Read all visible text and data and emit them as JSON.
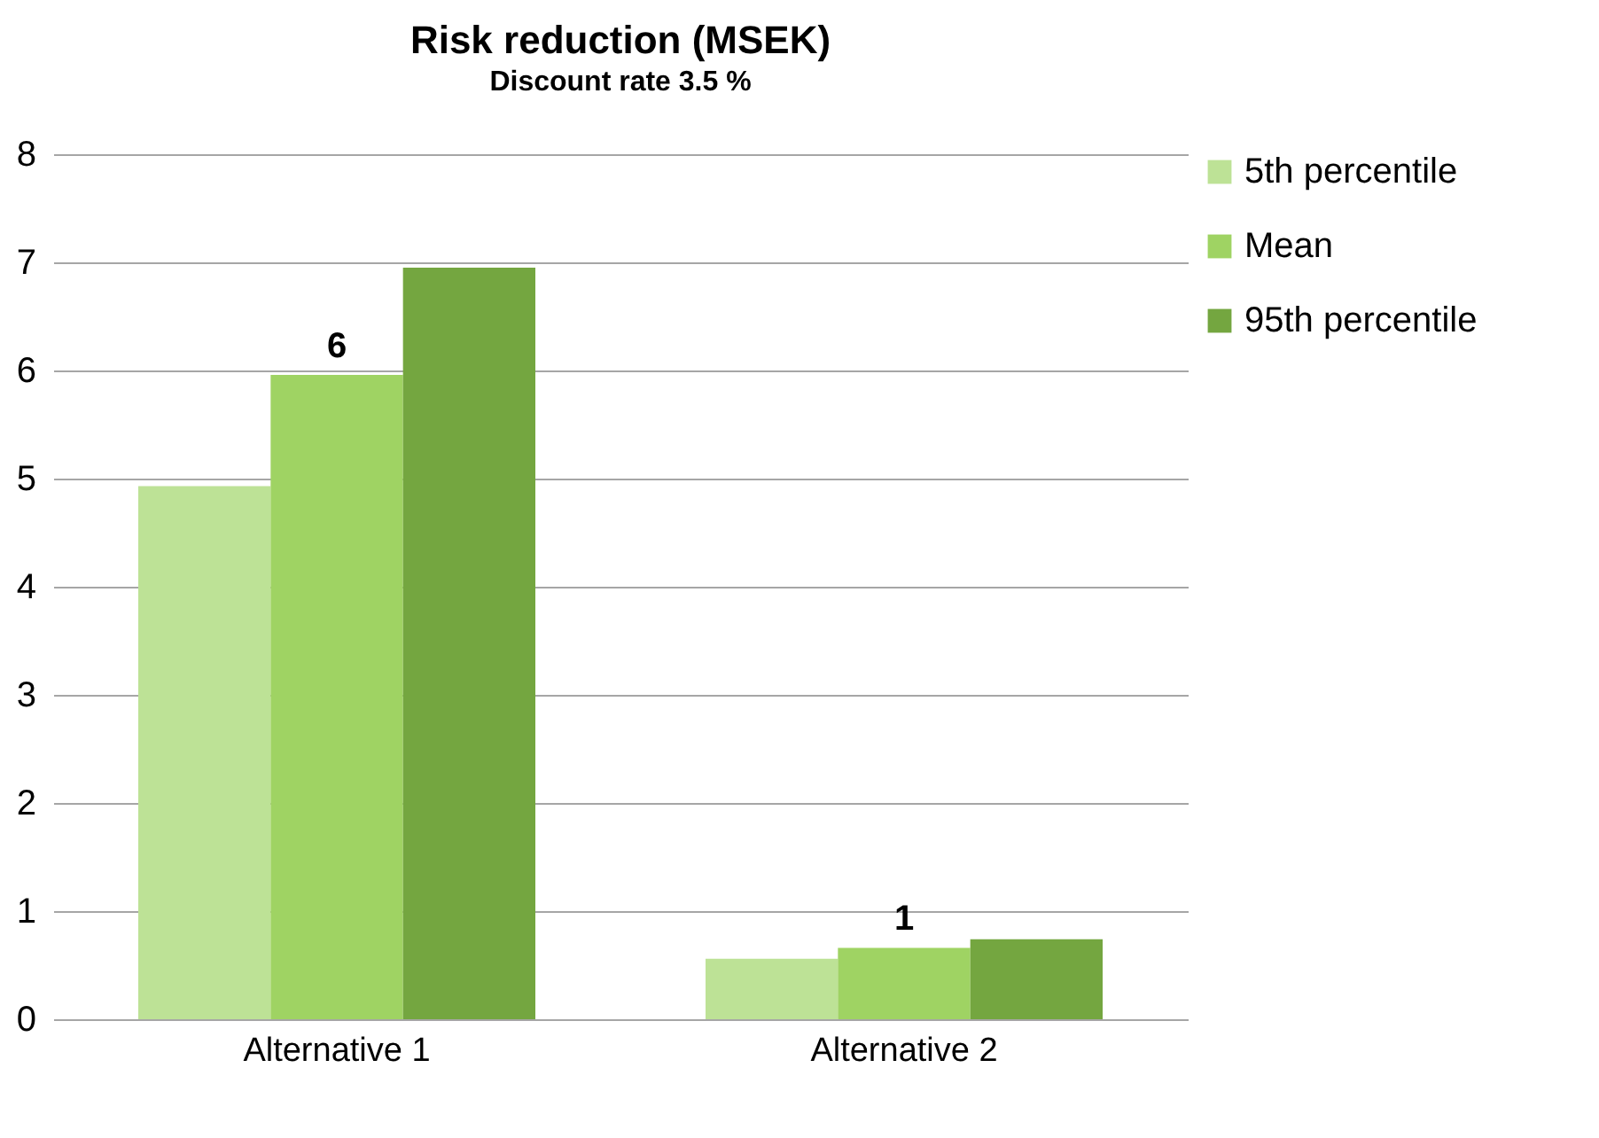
{
  "chart_data": {
    "type": "bar",
    "title": "Risk reduction (MSEK)",
    "subtitle": "Discount rate 3.5 %",
    "categories": [
      "Alternative 1",
      "Alternative 2"
    ],
    "series": [
      {
        "name": "5th percentile",
        "color": "#bde296",
        "values": [
          4.93,
          0.56
        ]
      },
      {
        "name": "Mean",
        "color": "#9fd363",
        "values": [
          5.96,
          0.66
        ],
        "value_labels": [
          "6",
          "1"
        ]
      },
      {
        "name": "95th percentile",
        "color": "#74a640",
        "values": [
          6.95,
          0.74
        ]
      }
    ],
    "ylim": [
      0,
      8
    ],
    "yticks": [
      0,
      1,
      2,
      3,
      4,
      5,
      6,
      7,
      8
    ],
    "grid": "y",
    "legend": "right"
  }
}
